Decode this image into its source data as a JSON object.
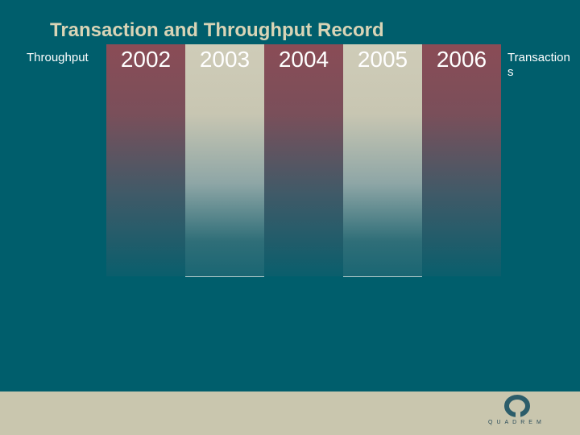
{
  "title": "Transaction and Throughput Record",
  "left_label": "Throughput",
  "right_label": "Transactions",
  "years": [
    "2002",
    "2003",
    "2004",
    "2005",
    "2006"
  ],
  "footer": {
    "logo_text": "QUADREM"
  }
}
